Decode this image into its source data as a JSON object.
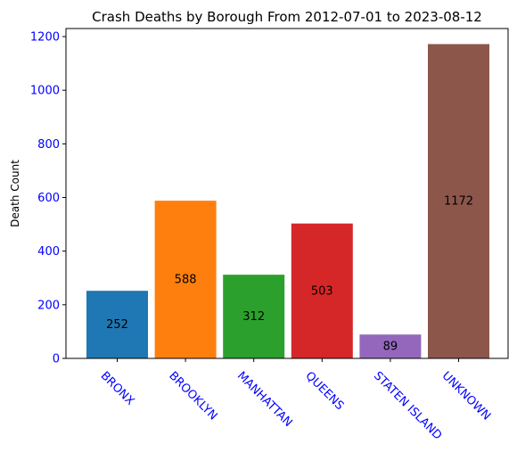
{
  "chart_data": {
    "type": "bar",
    "title": "Crash Deaths by Borough From 2012-07-01 to 2023-08-12",
    "xlabel": "",
    "ylabel": "Death Count",
    "categories": [
      "BRONX",
      "BROOKLYN",
      "MANHATTAN",
      "QUEENS",
      "STATEN ISLAND",
      "UNKNOWN"
    ],
    "values": [
      252,
      588,
      312,
      503,
      89,
      1172
    ],
    "data_labels": [
      "252",
      "588",
      "312",
      "503",
      "89",
      "1172"
    ],
    "bar_colors": [
      "#1f77b4",
      "#ff7f0e",
      "#2ca02c",
      "#d62728",
      "#9467bd",
      "#8c564b"
    ],
    "yticks": [
      0,
      200,
      400,
      600,
      800,
      1000,
      1200
    ],
    "ylim": [
      0,
      1230
    ],
    "tick_label_color": "#0000ff",
    "grid": false,
    "legend": "none"
  }
}
